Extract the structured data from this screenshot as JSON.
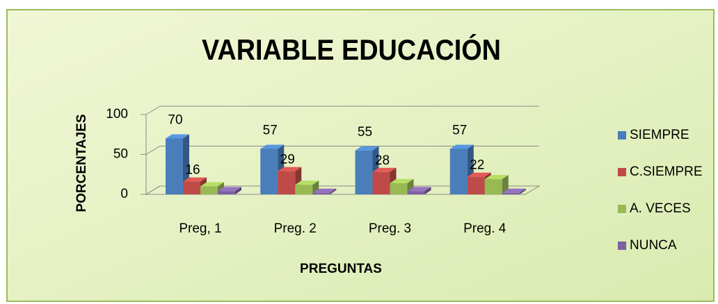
{
  "chart_data": {
    "type": "bar3d",
    "title": "VARIABLE EDUCACIÓN",
    "y_label": "PORCENTAJES",
    "x_label": "PREGUNTAS",
    "categories": [
      "Preg, 1",
      "Preg. 2",
      "Preg. 3",
      "Preg. 4"
    ],
    "series": [
      {
        "name": "SIEMPRE",
        "color": "#4a7ebb",
        "values": [
          70,
          57,
          55,
          57
        ],
        "show_labels": true
      },
      {
        "name": "C.SIEMPRE",
        "color": "#be4b48",
        "values": [
          16,
          29,
          28,
          22
        ],
        "show_labels": true
      },
      {
        "name": "A. VECES",
        "color": "#98b954",
        "values": [
          10,
          12,
          14,
          19
        ],
        "show_labels": false
      },
      {
        "name": "NUNCA",
        "color": "#7d60a0",
        "values": [
          4,
          2,
          4,
          2
        ],
        "show_labels": false
      }
    ],
    "ylim": [
      0,
      100
    ],
    "yticks": [
      0,
      50,
      100
    ],
    "grid": true,
    "legend": "right"
  }
}
